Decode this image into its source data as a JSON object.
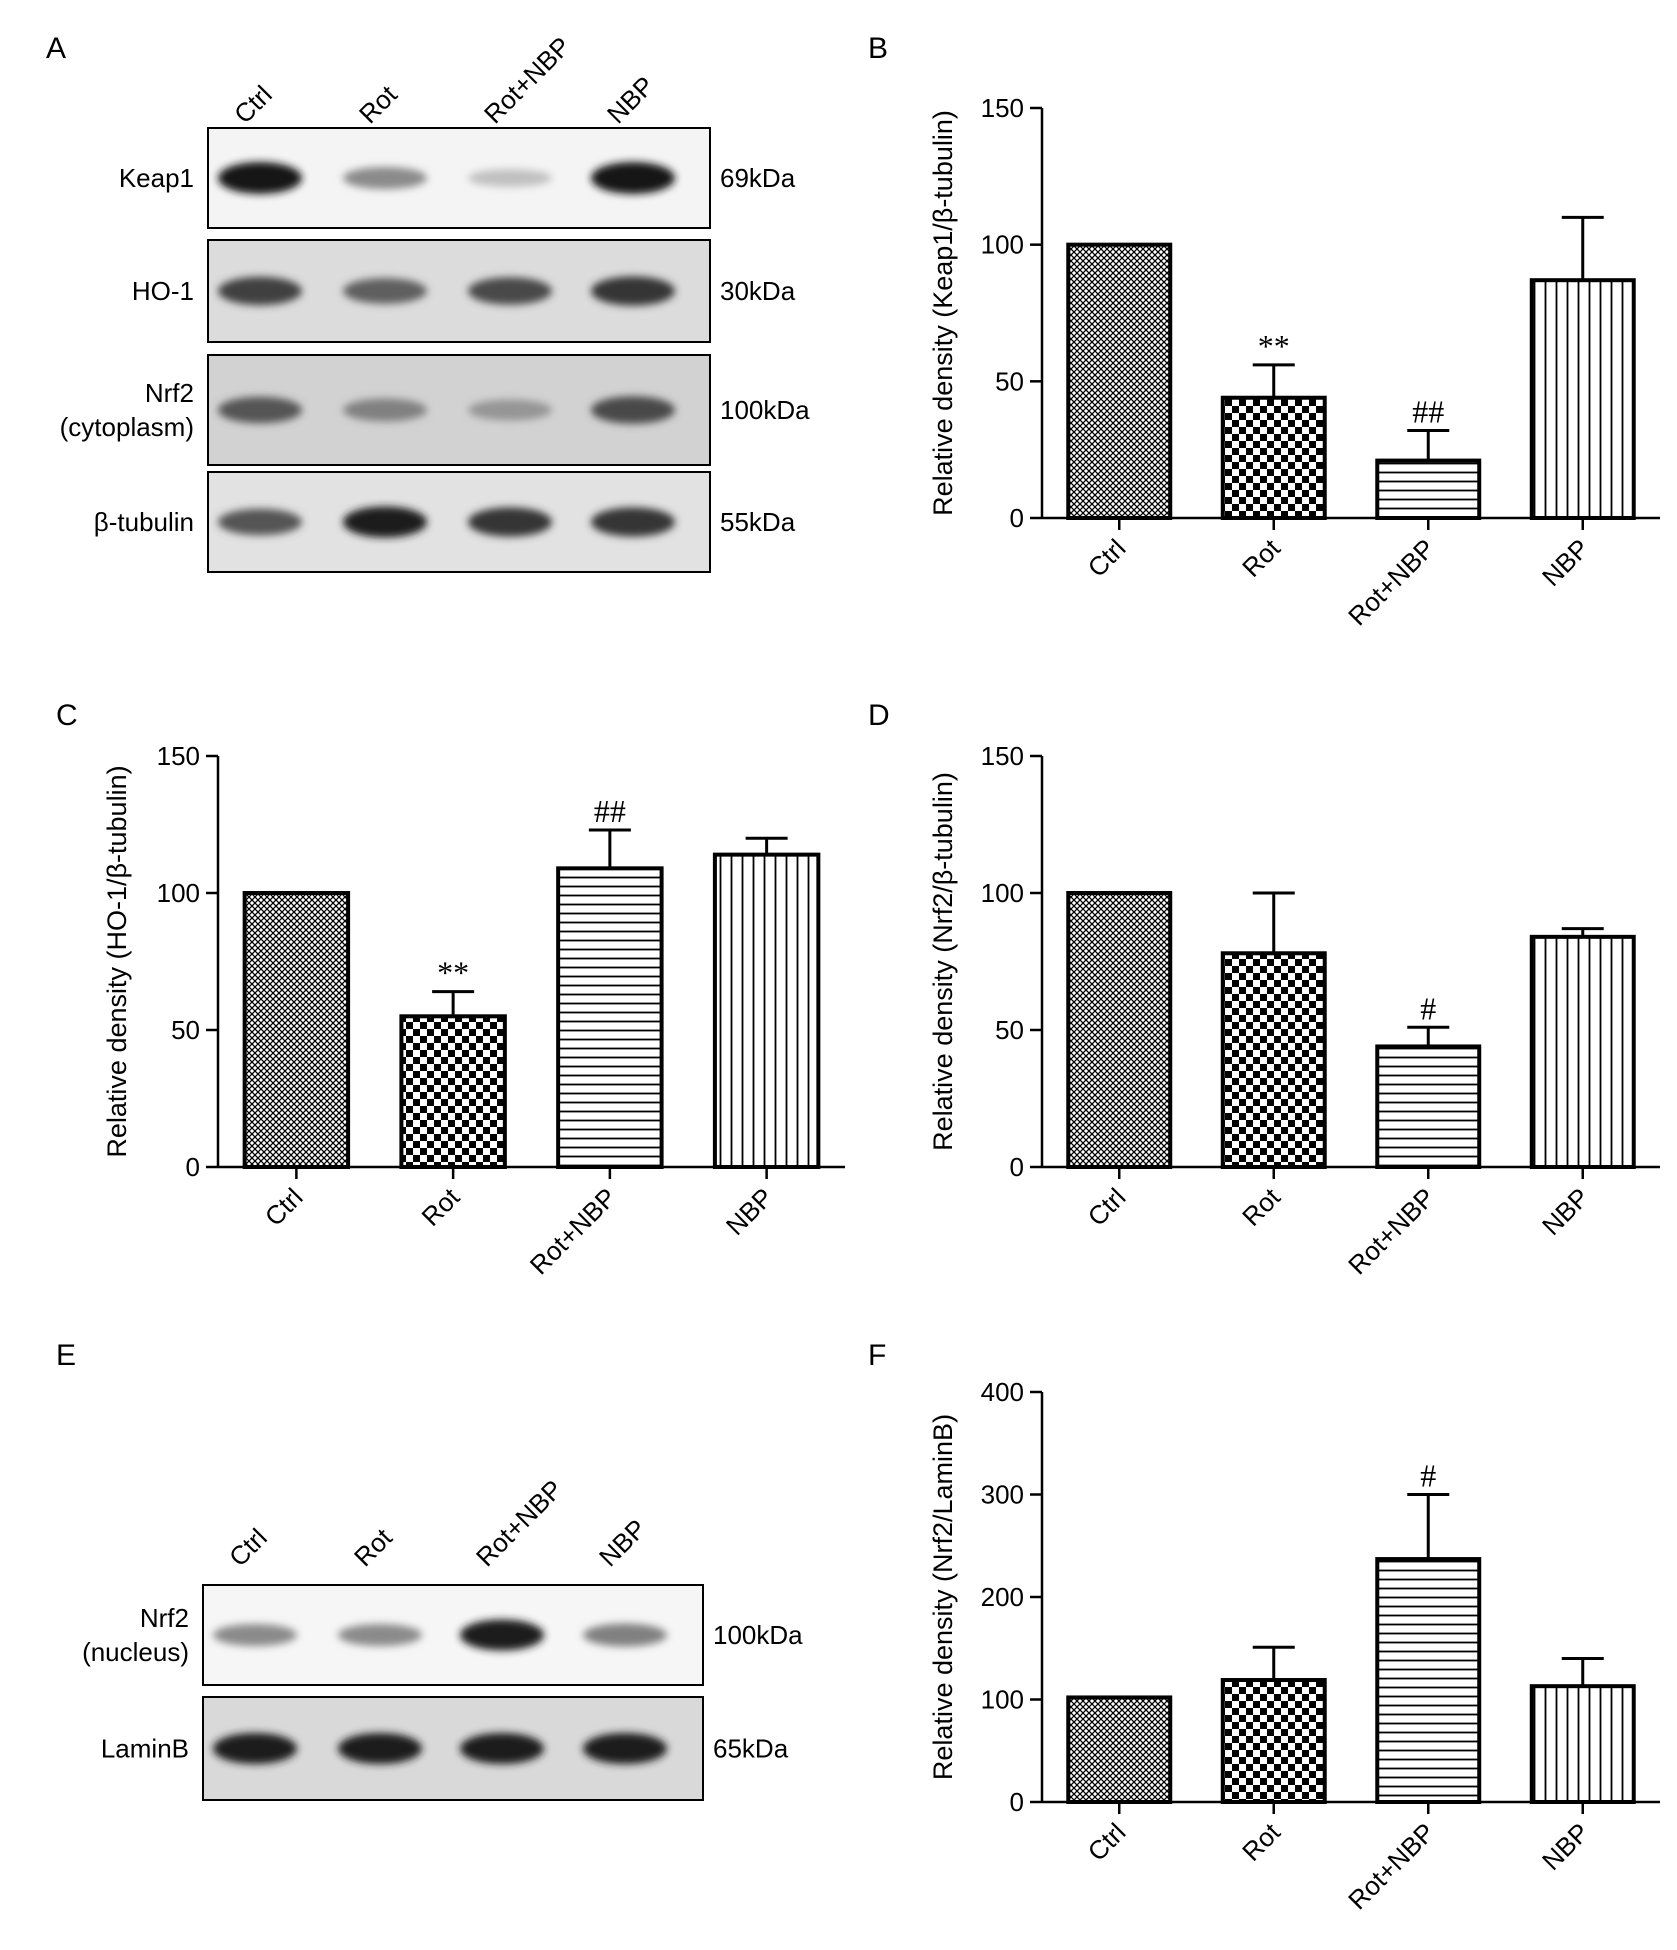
{
  "panel_letters": [
    "A",
    "B",
    "C",
    "D",
    "E",
    "F"
  ],
  "blot_a": {
    "lanes": [
      "Ctrl",
      "Rot",
      "Rot+NBP",
      "NBP"
    ],
    "rows": [
      {
        "label": [
          "Keap1"
        ],
        "size": "69kDa",
        "intensity": [
          1.0,
          0.45,
          0.2,
          1.0
        ]
      },
      {
        "label": [
          "HO-1"
        ],
        "size": "30kDa",
        "intensity": [
          0.8,
          0.65,
          0.75,
          0.85
        ]
      },
      {
        "label": [
          "Nrf2",
          "(cytoplasm)"
        ],
        "size": "100kDa",
        "intensity": [
          0.7,
          0.5,
          0.4,
          0.75
        ]
      },
      {
        "label": [
          "β-tubulin"
        ],
        "size": "55kDa",
        "intensity": [
          0.7,
          0.95,
          0.85,
          0.85
        ]
      }
    ]
  },
  "blot_e": {
    "lanes": [
      "Ctrl",
      "Rot",
      "Rot+NBP",
      "NBP"
    ],
    "rows": [
      {
        "label": [
          "Nrf2",
          "(nucleus)"
        ],
        "size": "100kDa",
        "intensity": [
          0.45,
          0.45,
          0.95,
          0.5
        ]
      },
      {
        "label": [
          "LaminB"
        ],
        "size": "65kDa",
        "intensity": [
          0.95,
          0.95,
          0.95,
          0.95
        ]
      }
    ]
  },
  "chart_data": [
    {
      "panel": "B",
      "type": "bar",
      "categories": [
        "Ctrl",
        "Rot",
        "Rot+NBP",
        "NBP"
      ],
      "values": [
        100,
        44,
        21,
        87
      ],
      "errors": [
        0,
        12,
        11,
        23
      ],
      "annotations": [
        "",
        "**",
        "##",
        ""
      ],
      "ylabel": "Relative density (Keap1/β-tubulin)",
      "ylim": [
        0,
        150
      ],
      "yticks": [
        0,
        50,
        100,
        150
      ],
      "patterns": [
        "crosshatch",
        "checker",
        "horizontal",
        "vertical"
      ]
    },
    {
      "panel": "C",
      "type": "bar",
      "categories": [
        "Ctrl",
        "Rot",
        "Rot+NBP",
        "NBP"
      ],
      "values": [
        100,
        55,
        109,
        114
      ],
      "errors": [
        0,
        9,
        14,
        6
      ],
      "annotations": [
        "",
        "**",
        "##",
        ""
      ],
      "ylabel": "Relative density (HO-1/β-tubulin)",
      "ylim": [
        0,
        150
      ],
      "yticks": [
        0,
        50,
        100,
        150
      ],
      "patterns": [
        "crosshatch",
        "checker",
        "horizontal",
        "vertical"
      ]
    },
    {
      "panel": "D",
      "type": "bar",
      "categories": [
        "Ctrl",
        "Rot",
        "Rot+NBP",
        "NBP"
      ],
      "values": [
        100,
        78,
        44,
        84
      ],
      "errors": [
        0,
        22,
        7,
        3
      ],
      "annotations": [
        "",
        "",
        "#",
        ""
      ],
      "ylabel": "Relative density (Nrf2/β-tubulin)",
      "ylim": [
        0,
        150
      ],
      "yticks": [
        0,
        50,
        100,
        150
      ],
      "patterns": [
        "crosshatch",
        "checker",
        "horizontal",
        "vertical"
      ]
    },
    {
      "panel": "F",
      "type": "bar",
      "categories": [
        "Ctrl",
        "Rot",
        "Rot+NBP",
        "NBP"
      ],
      "values": [
        102,
        119,
        237,
        113
      ],
      "errors": [
        0,
        32,
        63,
        27
      ],
      "annotations": [
        "",
        "",
        "#",
        ""
      ],
      "ylabel": "Relative density (Nrf2/LaminB)",
      "ylim": [
        0,
        400
      ],
      "yticks": [
        0,
        100,
        200,
        300,
        400
      ],
      "patterns": [
        "crosshatch",
        "checker",
        "horizontal",
        "vertical"
      ]
    }
  ]
}
